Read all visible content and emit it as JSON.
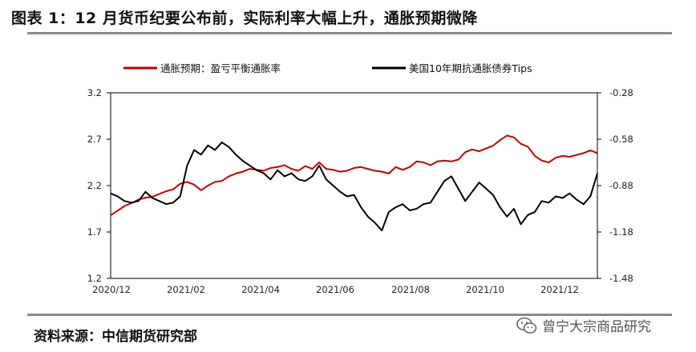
{
  "title": "图表 1：12 月货币纪要公布前，实际利率大幅上升，通胀预期微降",
  "source": "资料来源：中信期货研究部",
  "watermark": "曾宁大宗商品研究",
  "colors": {
    "red": "#c00000",
    "black": "#000000",
    "rule": "#8a8a8a"
  },
  "chart_data": {
    "type": "line",
    "x_tick_labels": [
      "2020/12",
      "2021/02",
      "2021/04",
      "2021/06",
      "2021/08",
      "2021/10",
      "2021/12"
    ],
    "y_left": {
      "ylim": [
        1.2,
        3.2
      ],
      "ticks": [
        "3.2",
        "2.7",
        "2.2",
        "1.7",
        "1.2"
      ]
    },
    "y_right": {
      "ylim": [
        -1.48,
        -0.28
      ],
      "ticks": [
        "-0.28",
        "-0.58",
        "-0.88",
        "-1.18",
        "-1.48"
      ]
    },
    "series": [
      {
        "name": "通胀预期：盈亏平衡通胀率",
        "axis": "left",
        "color": "#c00000",
        "values": [
          1.88,
          1.93,
          1.98,
          2.01,
          2.05,
          2.07,
          2.08,
          2.11,
          2.14,
          2.16,
          2.22,
          2.24,
          2.21,
          2.15,
          2.2,
          2.24,
          2.25,
          2.3,
          2.33,
          2.35,
          2.38,
          2.37,
          2.36,
          2.39,
          2.4,
          2.42,
          2.38,
          2.36,
          2.41,
          2.38,
          2.45,
          2.38,
          2.37,
          2.35,
          2.36,
          2.39,
          2.4,
          2.38,
          2.36,
          2.35,
          2.33,
          2.4,
          2.37,
          2.4,
          2.46,
          2.45,
          2.42,
          2.46,
          2.47,
          2.46,
          2.48,
          2.56,
          2.59,
          2.57,
          2.6,
          2.63,
          2.69,
          2.74,
          2.72,
          2.65,
          2.62,
          2.52,
          2.47,
          2.45,
          2.5,
          2.52,
          2.51,
          2.53,
          2.55,
          2.58,
          2.55
        ]
      },
      {
        "name": "美国10年期抗通胀债券Tips",
        "axis": "right",
        "color": "#000000",
        "values": [
          -0.93,
          -0.95,
          -0.98,
          -0.99,
          -0.98,
          -0.92,
          -0.96,
          -0.98,
          -1.0,
          -0.99,
          -0.95,
          -0.75,
          -0.65,
          -0.68,
          -0.62,
          -0.65,
          -0.6,
          -0.63,
          -0.68,
          -0.72,
          -0.75,
          -0.78,
          -0.8,
          -0.84,
          -0.78,
          -0.82,
          -0.8,
          -0.84,
          -0.85,
          -0.82,
          -0.75,
          -0.84,
          -0.88,
          -0.92,
          -0.95,
          -0.94,
          -1.02,
          -1.08,
          -1.12,
          -1.17,
          -1.05,
          -1.02,
          -1.0,
          -1.04,
          -1.03,
          -1.0,
          -0.99,
          -0.92,
          -0.85,
          -0.82,
          -0.9,
          -0.98,
          -0.92,
          -0.86,
          -0.9,
          -0.94,
          -1.02,
          -1.08,
          -1.03,
          -1.13,
          -1.07,
          -1.05,
          -0.98,
          -0.99,
          -0.95,
          -0.96,
          -0.93,
          -0.97,
          -1.0,
          -0.95,
          -0.8
        ]
      }
    ]
  }
}
